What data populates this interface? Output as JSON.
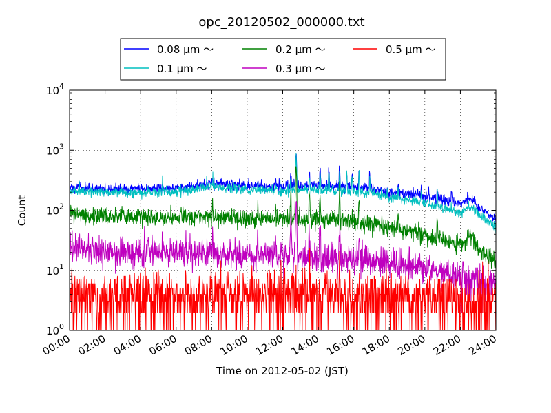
{
  "chart_data": {
    "type": "line",
    "title": "opc_20120502_000000.txt",
    "xlabel": "Time on 2012-05-02 (JST)",
    "ylabel": "Count",
    "x_ticks": [
      "00:00",
      "02:00",
      "04:00",
      "06:00",
      "08:00",
      "10:00",
      "12:00",
      "14:00",
      "16:00",
      "18:00",
      "20:00",
      "22:00",
      "24:00"
    ],
    "x_range_hours": [
      0,
      24
    ],
    "y_scale": "log",
    "ylim": [
      1,
      10000
    ],
    "y_ticks": [
      {
        "value": 1,
        "base": "10",
        "exp": "0"
      },
      {
        "value": 10,
        "base": "10",
        "exp": "1"
      },
      {
        "value": 100,
        "base": "10",
        "exp": "2"
      },
      {
        "value": 1000,
        "base": "10",
        "exp": "3"
      },
      {
        "value": 10000,
        "base": "10",
        "exp": "4"
      }
    ],
    "grid": true,
    "legend_position": "top-center",
    "series": [
      {
        "name": "0.08 μm ～",
        "color": "#0000ff",
        "noise": 0.04,
        "profile": [
          [
            0,
            240
          ],
          [
            1,
            235
          ],
          [
            2,
            225
          ],
          [
            3,
            228
          ],
          [
            4,
            230
          ],
          [
            5,
            228
          ],
          [
            6,
            235
          ],
          [
            7,
            250
          ],
          [
            8,
            285
          ],
          [
            9,
            270
          ],
          [
            10,
            255
          ],
          [
            11,
            250
          ],
          [
            12,
            245
          ],
          [
            13,
            260
          ],
          [
            14,
            255
          ],
          [
            15,
            250
          ],
          [
            16,
            245
          ],
          [
            17,
            235
          ],
          [
            18,
            200
          ],
          [
            19,
            190
          ],
          [
            20,
            175
          ],
          [
            21,
            150
          ],
          [
            22,
            125
          ],
          [
            22.6,
            160
          ],
          [
            23,
            115
          ],
          [
            24,
            68
          ]
        ],
        "spikes": [
          [
            8.05,
            340
          ],
          [
            10.6,
            340
          ],
          [
            11.6,
            330
          ],
          [
            12.45,
            400
          ],
          [
            12.75,
            900
          ],
          [
            13.5,
            430
          ],
          [
            14.1,
            500
          ],
          [
            14.6,
            470
          ],
          [
            15.2,
            510
          ],
          [
            15.6,
            470
          ],
          [
            15.9,
            430
          ],
          [
            16.3,
            450
          ],
          [
            16.9,
            390
          ],
          [
            18.5,
            270
          ],
          [
            19.8,
            260
          ],
          [
            20.7,
            240
          ],
          [
            21.5,
            230
          ]
        ]
      },
      {
        "name": "0.1 μm ～",
        "color": "#00bfbf",
        "noise": 0.04,
        "profile": [
          [
            0,
            215
          ],
          [
            1,
            210
          ],
          [
            2,
            200
          ],
          [
            3,
            200
          ],
          [
            4,
            195
          ],
          [
            5,
            200
          ],
          [
            6,
            205
          ],
          [
            7,
            215
          ],
          [
            8,
            245
          ],
          [
            9,
            235
          ],
          [
            10,
            220
          ],
          [
            11,
            215
          ],
          [
            12,
            210
          ],
          [
            13,
            220
          ],
          [
            14,
            215
          ],
          [
            15,
            210
          ],
          [
            16,
            200
          ],
          [
            17,
            195
          ],
          [
            18,
            165
          ],
          [
            19,
            150
          ],
          [
            20,
            130
          ],
          [
            21,
            110
          ],
          [
            22,
            90
          ],
          [
            22.6,
            120
          ],
          [
            23,
            85
          ],
          [
            24,
            52
          ]
        ],
        "spikes": [
          [
            8.05,
            290
          ],
          [
            10.6,
            300
          ],
          [
            11.6,
            290
          ],
          [
            12.45,
            350
          ],
          [
            12.75,
            850
          ],
          [
            13.5,
            380
          ],
          [
            14.1,
            440
          ],
          [
            14.6,
            420
          ],
          [
            15.2,
            450
          ],
          [
            15.6,
            410
          ],
          [
            15.9,
            380
          ],
          [
            16.3,
            400
          ],
          [
            16.9,
            340
          ],
          [
            18.5,
            230
          ],
          [
            19.8,
            220
          ],
          [
            20.7,
            200
          ]
        ]
      },
      {
        "name": "0.2 μm ～",
        "color": "#008000",
        "noise": 0.07,
        "profile": [
          [
            0,
            90
          ],
          [
            1,
            85
          ],
          [
            2,
            78
          ],
          [
            3,
            78
          ],
          [
            4,
            76
          ],
          [
            5,
            76
          ],
          [
            6,
            76
          ],
          [
            7,
            76
          ],
          [
            8,
            78
          ],
          [
            9,
            76
          ],
          [
            10,
            74
          ],
          [
            11,
            72
          ],
          [
            12,
            70
          ],
          [
            13,
            68
          ],
          [
            14,
            70
          ],
          [
            15,
            70
          ],
          [
            16,
            64
          ],
          [
            17,
            58
          ],
          [
            18,
            52
          ],
          [
            19,
            45
          ],
          [
            20,
            40
          ],
          [
            21,
            32
          ],
          [
            22,
            26
          ],
          [
            22.6,
            38
          ],
          [
            23,
            22
          ],
          [
            24,
            14
          ]
        ],
        "spikes": [
          [
            8.05,
            110
          ],
          [
            10.6,
            120
          ],
          [
            11.6,
            110
          ],
          [
            12.45,
            160
          ],
          [
            12.75,
            500
          ],
          [
            13.5,
            170
          ],
          [
            14.1,
            190
          ],
          [
            15.2,
            180
          ],
          [
            16.3,
            160
          ],
          [
            18.5,
            90
          ],
          [
            20.7,
            70
          ]
        ]
      },
      {
        "name": "0.3 μm ～",
        "color": "#bf00bf",
        "noise": 0.12,
        "profile": [
          [
            0,
            24
          ],
          [
            1,
            22
          ],
          [
            2,
            20
          ],
          [
            3,
            20
          ],
          [
            4,
            20
          ],
          [
            5,
            19
          ],
          [
            6,
            19
          ],
          [
            7,
            19
          ],
          [
            8,
            19
          ],
          [
            9,
            18
          ],
          [
            10,
            18
          ],
          [
            11,
            17
          ],
          [
            12,
            17
          ],
          [
            13,
            17
          ],
          [
            14,
            16
          ],
          [
            15,
            16
          ],
          [
            16,
            15
          ],
          [
            17,
            14
          ],
          [
            18,
            13
          ],
          [
            19,
            12
          ],
          [
            20,
            11
          ],
          [
            21,
            10
          ],
          [
            22,
            8
          ],
          [
            23,
            7
          ],
          [
            24,
            5.5
          ]
        ],
        "spikes": [
          [
            8.05,
            38
          ],
          [
            10.6,
            40
          ],
          [
            11.6,
            40
          ],
          [
            12.45,
            70
          ],
          [
            12.75,
            120
          ],
          [
            13.5,
            50
          ],
          [
            14.1,
            55
          ],
          [
            15.2,
            45
          ],
          [
            16.3,
            40
          ]
        ]
      },
      {
        "name": "0.5 μm ～",
        "color": "#ff0000",
        "noise": 0.35,
        "profile": [
          [
            0,
            4
          ],
          [
            4,
            3.8
          ],
          [
            8,
            4
          ],
          [
            12,
            4
          ],
          [
            16,
            3.8
          ],
          [
            20,
            3.6
          ],
          [
            24,
            3.2
          ]
        ],
        "spikes": [
          [
            12.75,
            14
          ],
          [
            13.5,
            12
          ],
          [
            15.2,
            11
          ]
        ]
      }
    ]
  }
}
